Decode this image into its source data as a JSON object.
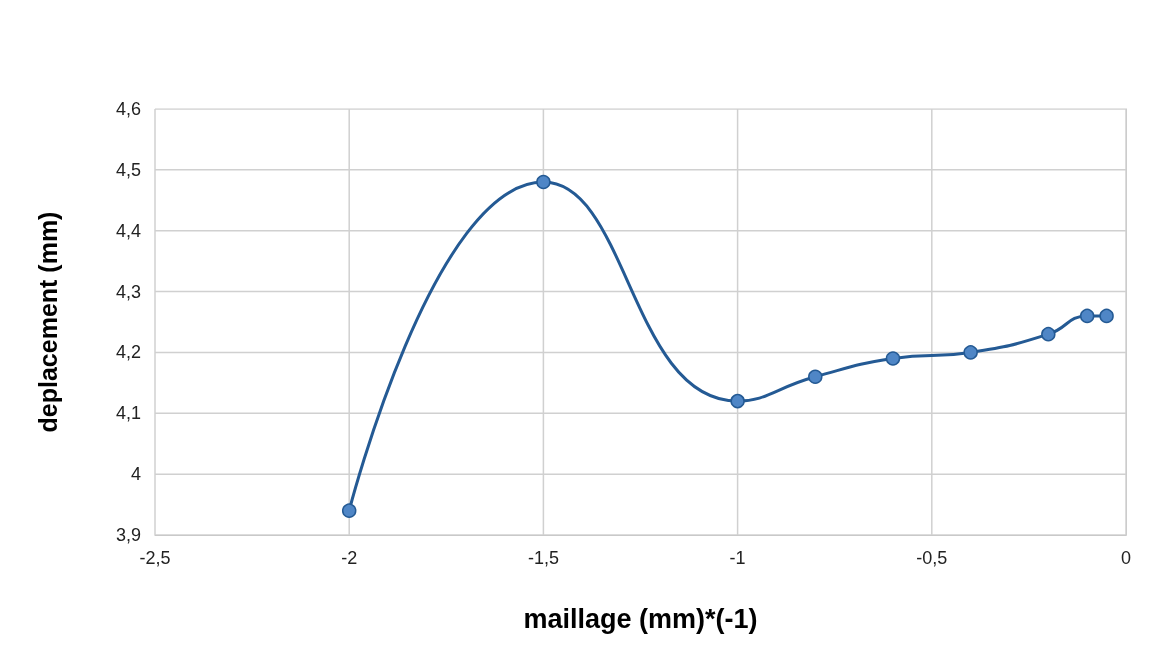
{
  "chart_data": {
    "type": "line",
    "xlabel": "maillage (mm)*(-1)",
    "ylabel": "deplacement (mm)",
    "x": [
      -2,
      -1.5,
      -1,
      -0.8,
      -0.6,
      -0.4,
      -0.2,
      -0.1,
      -0.05
    ],
    "series": [
      {
        "color": "#245a94",
        "values": [
          3.94,
          4.48,
          4.12,
          4.16,
          4.19,
          4.2,
          4.23,
          4.26,
          4.26
        ]
      }
    ],
    "xlim": [
      -2.5,
      0
    ],
    "xticks": [
      {
        "value": -2.5,
        "label": "-2,5"
      },
      -2,
      {
        "value": -1.5,
        "label": "-1,5"
      },
      -1,
      {
        "value": -0.5,
        "label": "-0,5"
      },
      0
    ],
    "ylim": [
      3.9,
      4.6
    ],
    "yticks": [
      {
        "value": 3.9,
        "label": "3,9"
      },
      4,
      {
        "value": 4.1,
        "label": "4,1"
      },
      {
        "value": 4.2,
        "label": "4,2"
      },
      {
        "value": 4.3,
        "label": "4,3"
      },
      {
        "value": 4.4,
        "label": "4,4"
      },
      {
        "value": 4.5,
        "label": "4,5"
      },
      {
        "value": 4.6,
        "label": "4,6"
      }
    ],
    "grid": true,
    "marker": "circle",
    "line_style": "solid"
  }
}
